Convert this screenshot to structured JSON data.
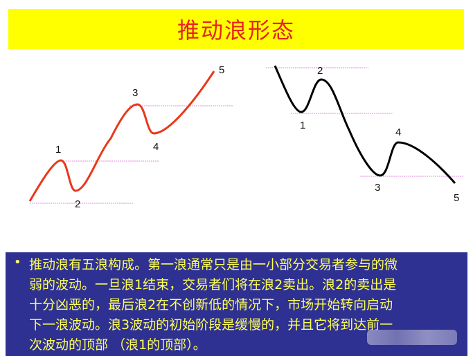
{
  "title": "推动浪形态",
  "colors": {
    "banner_bg": "#ffff00",
    "title": "#e8231f",
    "up_wave": "#e8381a",
    "down_wave": "#000000",
    "guide_lines": "#e08ee0",
    "box_bg": "#2e3192",
    "box_text": "#ffff55"
  },
  "up_wave": {
    "labels": [
      "1",
      "2",
      "3",
      "4",
      "5"
    ]
  },
  "down_wave": {
    "labels": [
      "1",
      "2",
      "3",
      "4",
      "5"
    ]
  },
  "description": {
    "bullet": "•",
    "lines": [
      "推动浪有五浪构成。第一浪通常只是由一小部分交易者参与的微",
      "弱的波动。一旦浪1结束，交易者们将在浪2卖出。浪2的卖出是",
      "十分凶恶的，最后浪2在不创新低的情况下，市场开始转向启动",
      "下一浪波动。浪3波动的初始阶段是缓慢的，并且它将到达前一",
      "次波动的顶部 （浪1的顶部）。"
    ]
  }
}
